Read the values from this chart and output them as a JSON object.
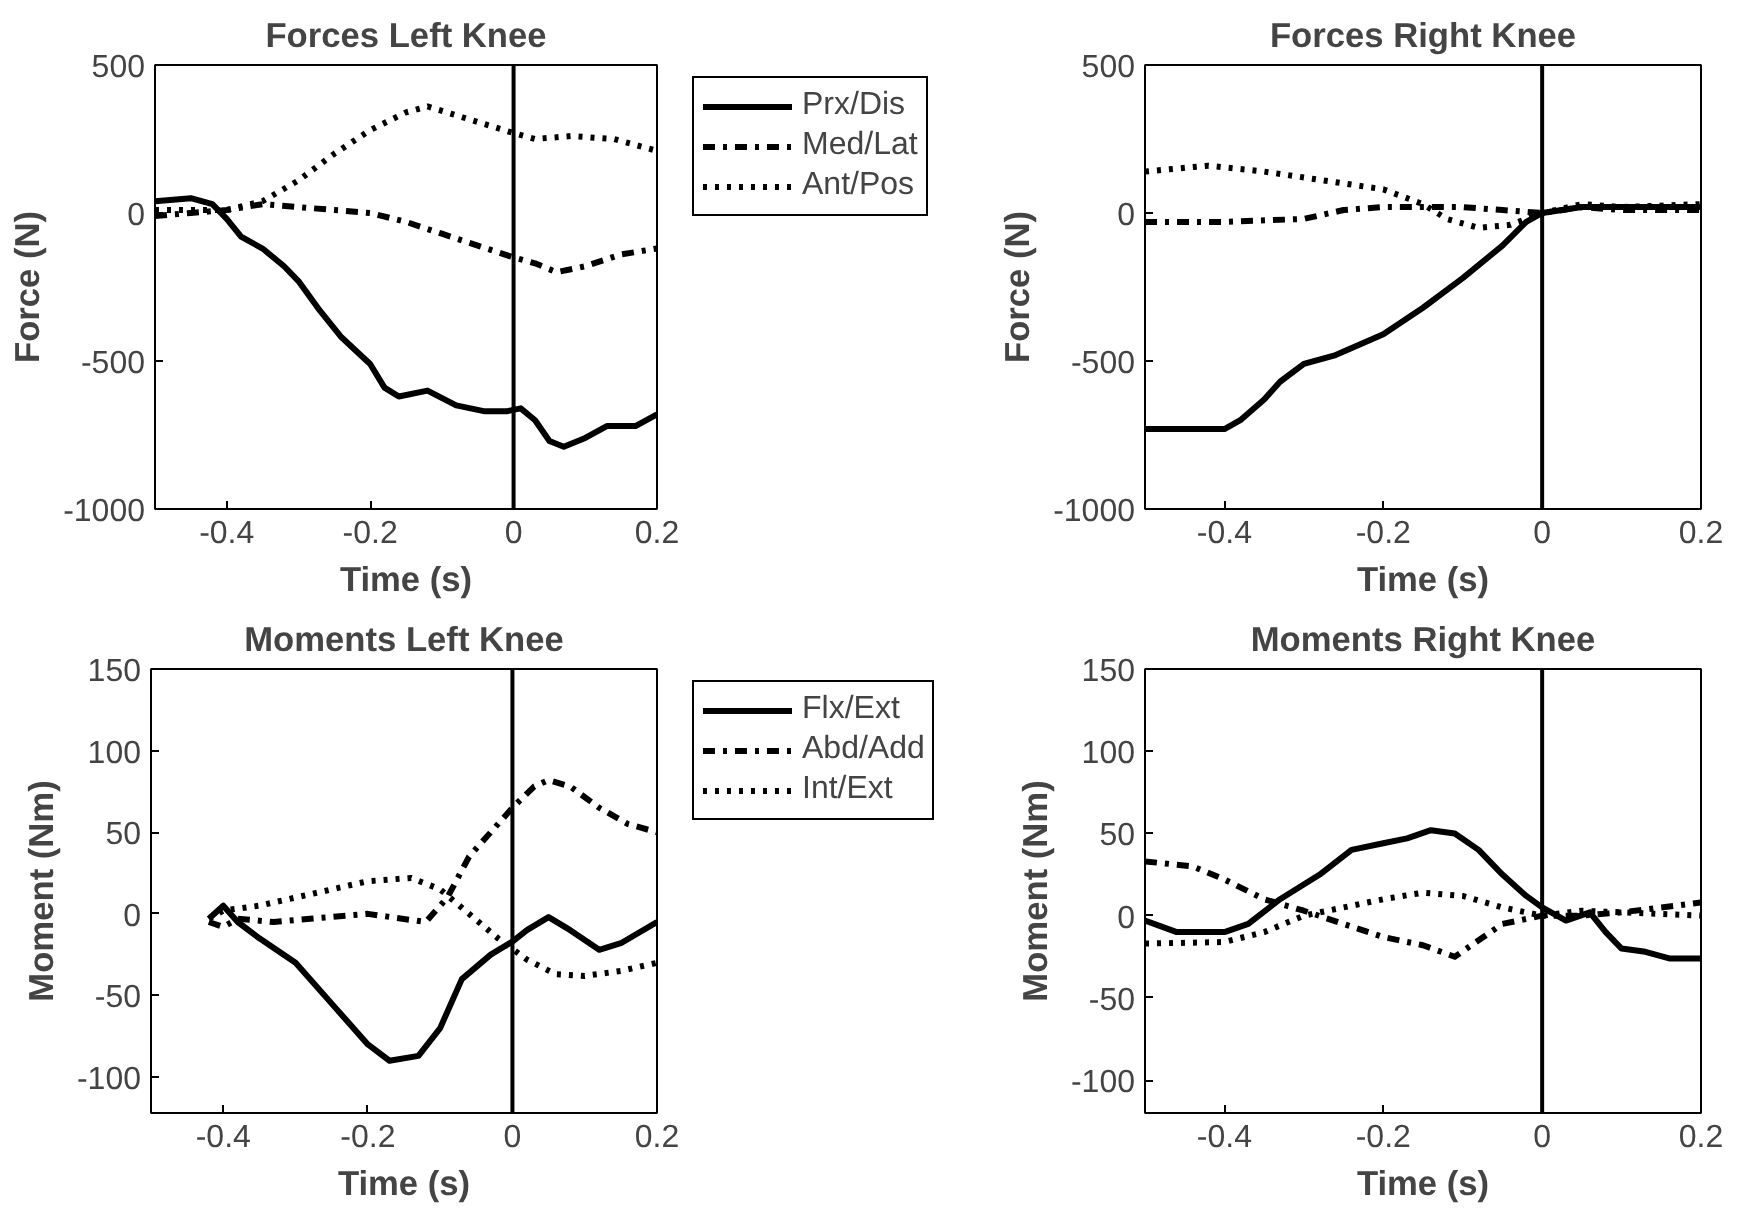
{
  "chart_data": [
    {
      "type": "line",
      "title": "Forces Left Knee",
      "xlabel": "Time (s)",
      "ylabel": "Force (N)",
      "xlim": [
        -0.5,
        0.2
      ],
      "xticks": [
        -0.4,
        -0.2,
        0,
        0.2
      ],
      "ylim": [
        -1000,
        500
      ],
      "yticks": [
        -1000,
        -500,
        0,
        500
      ],
      "grid": false,
      "legend": "right",
      "ref_lines": [
        {
          "axis": "x",
          "value": 0,
          "color": "#000000"
        }
      ],
      "series": [
        {
          "name": "Prx/Dis",
          "color": "#000000",
          "line_style": "solid",
          "x": [
            -0.5,
            -0.45,
            -0.42,
            -0.4,
            -0.38,
            -0.35,
            -0.32,
            -0.3,
            -0.27,
            -0.24,
            -0.2,
            -0.18,
            -0.16,
            -0.12,
            -0.08,
            -0.04,
            -0.01,
            0.01,
            0.03,
            0.05,
            0.07,
            0.1,
            0.13,
            0.17,
            0.2
          ],
          "values": [
            40,
            50,
            30,
            -20,
            -80,
            -120,
            -180,
            -230,
            -330,
            -420,
            -510,
            -590,
            -620,
            -600,
            -650,
            -670,
            -670,
            -660,
            -700,
            -770,
            -790,
            -760,
            -720,
            -720,
            -680
          ]
        },
        {
          "name": "Med/Lat",
          "color": "#000000",
          "line_style": "dashdot",
          "x": [
            -0.5,
            -0.45,
            -0.4,
            -0.35,
            -0.3,
            -0.25,
            -0.2,
            -0.15,
            -0.1,
            -0.05,
            0,
            0.03,
            0.06,
            0.1,
            0.15,
            0.2
          ],
          "values": [
            -10,
            0,
            10,
            30,
            20,
            10,
            0,
            -30,
            -70,
            -110,
            -150,
            -170,
            -200,
            -180,
            -140,
            -120
          ]
        },
        {
          "name": "Ant/Pos",
          "color": "#000000",
          "line_style": "dotted",
          "x": [
            -0.5,
            -0.4,
            -0.35,
            -0.3,
            -0.25,
            -0.2,
            -0.15,
            -0.12,
            -0.08,
            -0.04,
            0,
            0.03,
            0.08,
            0.14,
            0.2
          ],
          "values": [
            10,
            10,
            40,
            110,
            200,
            280,
            340,
            360,
            330,
            300,
            270,
            250,
            260,
            250,
            210
          ]
        }
      ]
    },
    {
      "type": "line",
      "title": "Forces Right Knee",
      "xlabel": "Time (s)",
      "ylabel": "Force (N)",
      "xlim": [
        -0.5,
        0.2
      ],
      "xticks": [
        -0.4,
        -0.2,
        0,
        0.2
      ],
      "ylim": [
        -1000,
        500
      ],
      "yticks": [
        -1000,
        -500,
        0,
        500
      ],
      "grid": false,
      "ref_lines": [
        {
          "axis": "x",
          "value": 0,
          "color": "#000000"
        }
      ],
      "series": [
        {
          "color": "#000000",
          "line_style": "solid",
          "x": [
            -0.5,
            -0.4,
            -0.38,
            -0.35,
            -0.33,
            -0.3,
            -0.26,
            -0.2,
            -0.15,
            -0.1,
            -0.05,
            -0.02,
            0,
            0.05,
            0.1,
            0.2
          ],
          "values": [
            -730,
            -730,
            -700,
            -630,
            -570,
            -510,
            -480,
            -410,
            -320,
            -220,
            -110,
            -30,
            0,
            20,
            20,
            20
          ]
        },
        {
          "color": "#000000",
          "line_style": "dashdot",
          "x": [
            -0.5,
            -0.4,
            -0.3,
            -0.25,
            -0.2,
            -0.1,
            -0.05,
            0,
            0.05,
            0.1,
            0.2
          ],
          "values": [
            -30,
            -30,
            -20,
            10,
            20,
            20,
            10,
            0,
            20,
            10,
            10
          ]
        },
        {
          "color": "#000000",
          "line_style": "dotted",
          "x": [
            -0.5,
            -0.42,
            -0.35,
            -0.25,
            -0.2,
            -0.15,
            -0.12,
            -0.08,
            -0.04,
            0,
            0.05,
            0.1,
            0.2
          ],
          "values": [
            140,
            160,
            140,
            100,
            80,
            30,
            -20,
            -50,
            -40,
            0,
            30,
            20,
            30
          ]
        }
      ]
    },
    {
      "type": "line",
      "title": "Moments Left Knee",
      "xlabel": "Time (s)",
      "ylabel": "Moment (Nm)",
      "xlim": [
        -0.5,
        0.2
      ],
      "xticks": [
        -0.4,
        -0.2,
        0,
        0.2
      ],
      "ylim": [
        -122,
        150
      ],
      "yticks": [
        -100,
        -50,
        0,
        50,
        100,
        150
      ],
      "grid": false,
      "legend": "right",
      "ref_lines": [
        {
          "axis": "x",
          "value": 0,
          "color": "#000000"
        }
      ],
      "series": [
        {
          "name": "Flx/Ext",
          "color": "#000000",
          "line_style": "solid",
          "x": [
            -0.42,
            -0.4,
            -0.38,
            -0.35,
            -0.3,
            -0.25,
            -0.2,
            -0.17,
            -0.13,
            -0.1,
            -0.07,
            -0.03,
            0,
            0.02,
            0.05,
            0.08,
            0.12,
            0.15,
            0.2
          ],
          "values": [
            -3,
            5,
            -5,
            -15,
            -30,
            -55,
            -80,
            -90,
            -87,
            -70,
            -40,
            -25,
            -17,
            -10,
            -2,
            -10,
            -22,
            -18,
            -5
          ]
        },
        {
          "name": "Abd/Add",
          "color": "#000000",
          "line_style": "dashdot",
          "x": [
            -0.42,
            -0.4,
            -0.38,
            -0.33,
            -0.28,
            -0.2,
            -0.12,
            -0.09,
            -0.06,
            -0.03,
            0,
            0.03,
            0.05,
            0.08,
            0.12,
            0.16,
            0.2
          ],
          "values": [
            -5,
            -8,
            -3,
            -5,
            -3,
            0,
            -5,
            10,
            35,
            50,
            65,
            78,
            82,
            78,
            65,
            55,
            50
          ]
        },
        {
          "name": "Int/Ext",
          "color": "#000000",
          "line_style": "dotted",
          "x": [
            -0.42,
            -0.4,
            -0.35,
            -0.3,
            -0.25,
            -0.2,
            -0.14,
            -0.1,
            -0.06,
            -0.02,
            0.02,
            0.06,
            0.1,
            0.15,
            0.2
          ],
          "values": [
            -3,
            2,
            5,
            10,
            15,
            20,
            22,
            15,
            0,
            -15,
            -28,
            -37,
            -38,
            -35,
            -30
          ]
        }
      ]
    },
    {
      "type": "line",
      "title": "Moments Right Knee",
      "xlabel": "Time (s)",
      "ylabel": "Moment (Nm)",
      "xlim": [
        -0.5,
        0.2
      ],
      "xticks": [
        -0.4,
        -0.2,
        0,
        0.2
      ],
      "ylim": [
        -120,
        150
      ],
      "yticks": [
        -100,
        -50,
        0,
        50,
        100,
        150
      ],
      "grid": false,
      "ref_lines": [
        {
          "axis": "x",
          "value": 0,
          "color": "#000000"
        }
      ],
      "series": [
        {
          "color": "#000000",
          "line_style": "solid",
          "x": [
            -0.5,
            -0.46,
            -0.4,
            -0.37,
            -0.33,
            -0.28,
            -0.24,
            -0.2,
            -0.17,
            -0.14,
            -0.11,
            -0.08,
            -0.05,
            -0.02,
            0,
            0.03,
            0.06,
            0.08,
            0.1,
            0.13,
            0.16,
            0.2
          ],
          "values": [
            -3,
            -10,
            -10,
            -5,
            10,
            25,
            40,
            44,
            47,
            52,
            50,
            40,
            25,
            12,
            5,
            -3,
            2,
            -10,
            -20,
            -22,
            -26,
            -26
          ]
        },
        {
          "color": "#000000",
          "line_style": "dashdot",
          "x": [
            -0.5,
            -0.44,
            -0.4,
            -0.35,
            -0.3,
            -0.25,
            -0.2,
            -0.15,
            -0.11,
            -0.08,
            -0.05,
            0,
            0.05,
            0.1,
            0.15,
            0.2
          ],
          "values": [
            33,
            30,
            22,
            10,
            3,
            -5,
            -13,
            -18,
            -25,
            -15,
            -5,
            0,
            0,
            2,
            5,
            8
          ]
        },
        {
          "color": "#000000",
          "line_style": "dotted",
          "x": [
            -0.5,
            -0.4,
            -0.35,
            -0.3,
            -0.25,
            -0.2,
            -0.15,
            -0.1,
            -0.05,
            0,
            0.05,
            0.1,
            0.2
          ],
          "values": [
            -17,
            -16,
            -10,
            0,
            5,
            10,
            14,
            12,
            5,
            0,
            3,
            2,
            0
          ]
        }
      ]
    }
  ]
}
